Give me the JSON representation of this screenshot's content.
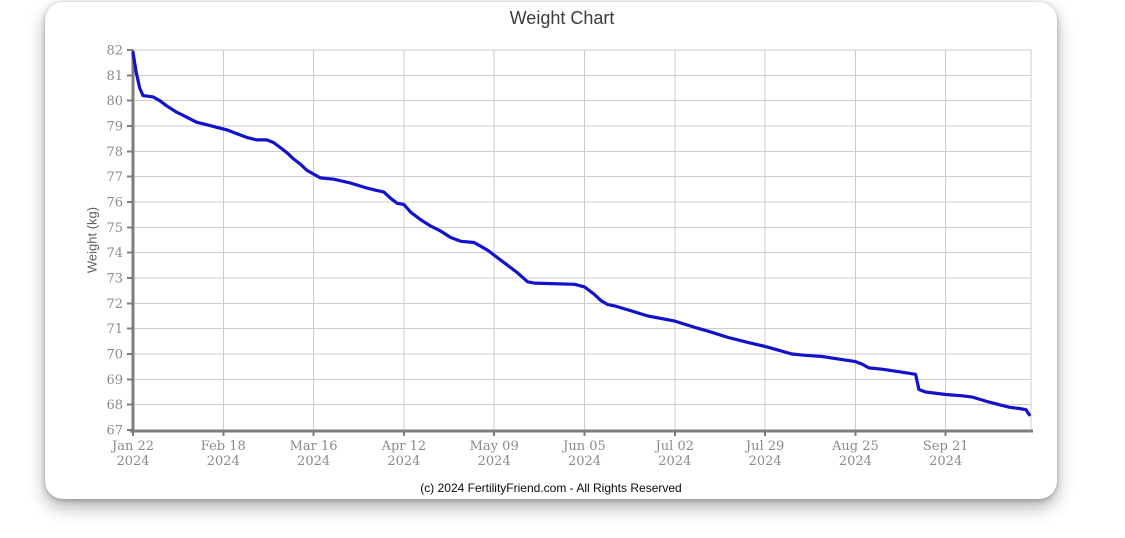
{
  "title": "Weight Chart",
  "footer": {
    "copyright": "(c) 2024 FertilityFriend.com - All Rights Reserved"
  },
  "chart_data": {
    "type": "line",
    "title": "Weight Chart",
    "xlabel": "",
    "ylabel": "Weight (kg)",
    "ylim": [
      67,
      82
    ],
    "ytick_step": 1,
    "grid": true,
    "legend": "none",
    "xtick_interval_days": 27,
    "xticks": [
      {
        "label": "Jan 22",
        "year": "2024",
        "date": "2024-01-22"
      },
      {
        "label": "Feb 18",
        "year": "2024",
        "date": "2024-02-18"
      },
      {
        "label": "Mar 16",
        "year": "2024",
        "date": "2024-03-16"
      },
      {
        "label": "Apr 12",
        "year": "2024",
        "date": "2024-04-12"
      },
      {
        "label": "May 09",
        "year": "2024",
        "date": "2024-05-09"
      },
      {
        "label": "Jun 05",
        "year": "2024",
        "date": "2024-06-05"
      },
      {
        "label": "Jul 02",
        "year": "2024",
        "date": "2024-07-02"
      },
      {
        "label": "Jul 29",
        "year": "2024",
        "date": "2024-07-29"
      },
      {
        "label": "Aug 25",
        "year": "2024",
        "date": "2024-08-25"
      },
      {
        "label": "Sep 21",
        "year": "2024",
        "date": "2024-09-21"
      }
    ],
    "colors": {
      "line": "#1212cd",
      "grid": "#cccccc",
      "axis": "#7d7d7d",
      "tick_label": "#8a8a8a",
      "title": "#3c3c3c"
    },
    "series": [
      {
        "name": "Weight",
        "unit": "kg",
        "points": [
          [
            "2024-01-22",
            81.9
          ],
          [
            "2024-01-23",
            81.1
          ],
          [
            "2024-01-24",
            80.5
          ],
          [
            "2024-01-25",
            80.2
          ],
          [
            "2024-01-28",
            80.15
          ],
          [
            "2024-01-30",
            80.0
          ],
          [
            "2024-02-01",
            79.8
          ],
          [
            "2024-02-04",
            79.55
          ],
          [
            "2024-02-07",
            79.35
          ],
          [
            "2024-02-10",
            79.15
          ],
          [
            "2024-02-13",
            79.05
          ],
          [
            "2024-02-16",
            78.95
          ],
          [
            "2024-02-19",
            78.85
          ],
          [
            "2024-02-22",
            78.7
          ],
          [
            "2024-02-25",
            78.55
          ],
          [
            "2024-02-28",
            78.45
          ],
          [
            "2024-03-02",
            78.45
          ],
          [
            "2024-03-04",
            78.35
          ],
          [
            "2024-03-06",
            78.15
          ],
          [
            "2024-03-08",
            77.95
          ],
          [
            "2024-03-10",
            77.7
          ],
          [
            "2024-03-12",
            77.5
          ],
          [
            "2024-03-14",
            77.25
          ],
          [
            "2024-03-16",
            77.1
          ],
          [
            "2024-03-18",
            76.95
          ],
          [
            "2024-03-22",
            76.9
          ],
          [
            "2024-03-27",
            76.75
          ],
          [
            "2024-04-01",
            76.55
          ],
          [
            "2024-04-04",
            76.45
          ],
          [
            "2024-04-06",
            76.4
          ],
          [
            "2024-04-08",
            76.15
          ],
          [
            "2024-04-10",
            75.95
          ],
          [
            "2024-04-12",
            75.9
          ],
          [
            "2024-04-14",
            75.6
          ],
          [
            "2024-04-17",
            75.3
          ],
          [
            "2024-04-20",
            75.05
          ],
          [
            "2024-04-23",
            74.85
          ],
          [
            "2024-04-26",
            74.6
          ],
          [
            "2024-04-29",
            74.45
          ],
          [
            "2024-05-03",
            74.4
          ],
          [
            "2024-05-05",
            74.25
          ],
          [
            "2024-05-07",
            74.1
          ],
          [
            "2024-05-09",
            73.9
          ],
          [
            "2024-05-13",
            73.5
          ],
          [
            "2024-05-16",
            73.2
          ],
          [
            "2024-05-19",
            72.85
          ],
          [
            "2024-05-21",
            72.8
          ],
          [
            "2024-05-26",
            72.78
          ],
          [
            "2024-06-02",
            72.75
          ],
          [
            "2024-06-05",
            72.65
          ],
          [
            "2024-06-08",
            72.35
          ],
          [
            "2024-06-10",
            72.1
          ],
          [
            "2024-06-12",
            71.95
          ],
          [
            "2024-06-14",
            71.9
          ],
          [
            "2024-06-19",
            71.7
          ],
          [
            "2024-06-24",
            71.5
          ],
          [
            "2024-07-02",
            71.3
          ],
          [
            "2024-07-08",
            71.05
          ],
          [
            "2024-07-12",
            70.9
          ],
          [
            "2024-07-18",
            70.65
          ],
          [
            "2024-07-24",
            70.45
          ],
          [
            "2024-07-29",
            70.3
          ],
          [
            "2024-08-02",
            70.15
          ],
          [
            "2024-08-06",
            70.0
          ],
          [
            "2024-08-10",
            69.95
          ],
          [
            "2024-08-15",
            69.9
          ],
          [
            "2024-08-20",
            69.8
          ],
          [
            "2024-08-25",
            69.7
          ],
          [
            "2024-08-27",
            69.6
          ],
          [
            "2024-08-29",
            69.45
          ],
          [
            "2024-09-02",
            69.4
          ],
          [
            "2024-09-07",
            69.3
          ],
          [
            "2024-09-12",
            69.2
          ],
          [
            "2024-09-13",
            68.6
          ],
          [
            "2024-09-15",
            68.5
          ],
          [
            "2024-09-21",
            68.4
          ],
          [
            "2024-09-26",
            68.35
          ],
          [
            "2024-09-29",
            68.3
          ],
          [
            "2024-10-04",
            68.1
          ],
          [
            "2024-10-07",
            68.0
          ],
          [
            "2024-10-10",
            67.9
          ],
          [
            "2024-10-13",
            67.85
          ],
          [
            "2024-10-15",
            67.8
          ],
          [
            "2024-10-16",
            67.6
          ]
        ]
      }
    ]
  }
}
